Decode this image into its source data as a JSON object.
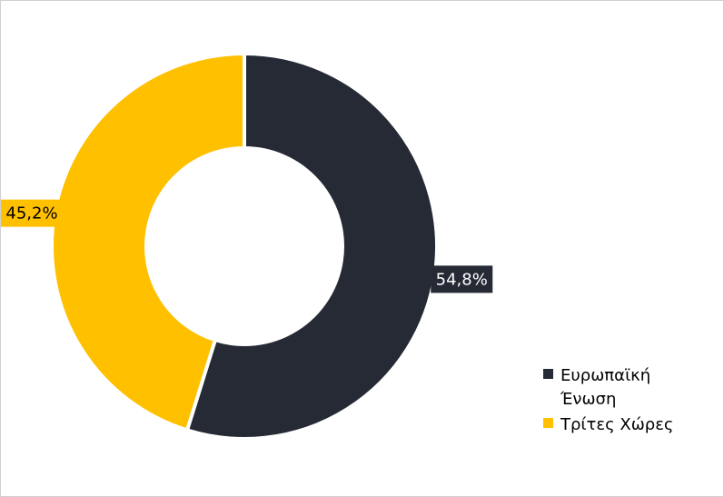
{
  "chart_data": {
    "type": "donut",
    "categories": [
      "Ευρωπαϊκή Ένωση",
      "Τρίτες Χώρες"
    ],
    "values": [
      54.8,
      45.2
    ],
    "value_labels": [
      "54,8%",
      "45,2%"
    ],
    "colors": [
      "#252a35",
      "#ffc000"
    ],
    "label_text_colors": [
      "#ffffff",
      "#000000"
    ],
    "legend": "right"
  }
}
